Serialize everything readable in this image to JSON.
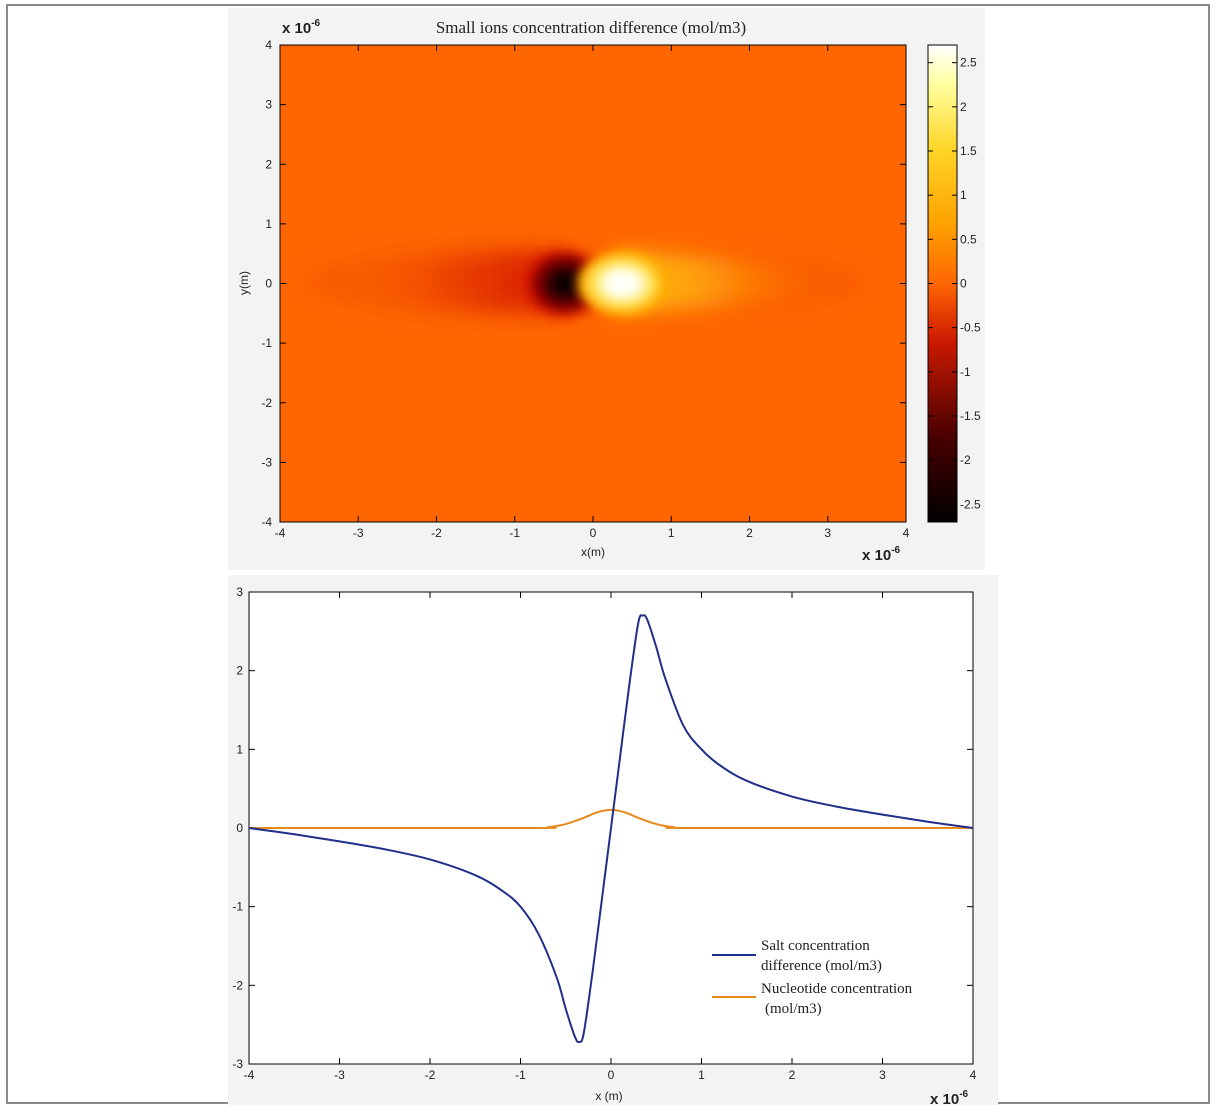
{
  "heatmap": {
    "title": "Small ions concentration difference (mol/m3)",
    "xlabel": "x(m)",
    "ylabel": "y(m)",
    "x_exponent_base": "x 10",
    "x_exponent_power": "-6",
    "y_exponent_base": "x 10",
    "y_exponent_power": "-6"
  },
  "lineplot": {
    "xlabel": "x (m)",
    "x_exponent_base": "x 10",
    "x_exponent_power": "-6"
  },
  "colors": {
    "background_orange": "#ff6600",
    "salt_line": "#1f2f8a",
    "nucleotide_line": "#e8891c",
    "axes": "#000000"
  },
  "chart_data": [
    {
      "type": "heatmap",
      "title": "Small ions concentration difference (mol/m3)",
      "xlabel": "x(m)",
      "ylabel": "y(m)",
      "xlim": [
        -4,
        4
      ],
      "ylim": [
        -4,
        4
      ],
      "x_ticks": [
        "-4",
        "-3",
        "-2",
        "-1",
        "0",
        "1",
        "2",
        "3",
        "4"
      ],
      "y_ticks": [
        "4",
        "3",
        "2",
        "1",
        "0",
        "-1",
        "-2",
        "-3",
        "-4"
      ],
      "colorbar": {
        "range": [
          -2.7,
          2.7
        ],
        "ticks": [
          "2.5",
          "2",
          "1.5",
          "1",
          "0.5",
          "0",
          "-0.5",
          "-1",
          "-1.5",
          "-2",
          "-2.5"
        ],
        "tick_values": [
          2.5,
          2,
          1.5,
          1,
          0.5,
          0,
          -0.5,
          -1,
          -1.5,
          -2,
          -2.5
        ]
      },
      "features": {
        "minimum": {
          "x": -0.35,
          "y": 0,
          "value": -2.7
        },
        "maximum": {
          "x": 0.35,
          "y": 0,
          "value": 2.7
        }
      }
    },
    {
      "type": "line",
      "xlabel": "x (m)",
      "xlim": [
        -4,
        4
      ],
      "ylim": [
        -3,
        3
      ],
      "x_ticks": [
        "-4",
        "-3",
        "-2",
        "-1",
        "0",
        "1",
        "2",
        "3",
        "4"
      ],
      "y_ticks": [
        "3",
        "2",
        "1",
        "0",
        "-1",
        "-2",
        "-3"
      ],
      "series": [
        {
          "name": "Salt concentration difference (mol/m3)",
          "legend_lines": [
            "Salt concentration",
            "difference (mol/m3)"
          ],
          "color": "#1f2f8a",
          "x": [
            -4.0,
            -3.5,
            -3.0,
            -2.5,
            -2.0,
            -1.5,
            -1.2,
            -1.0,
            -0.8,
            -0.6,
            -0.5,
            -0.4,
            -0.35,
            -0.3,
            -0.2,
            -0.1,
            0.0,
            0.1,
            0.2,
            0.3,
            0.35,
            0.4,
            0.5,
            0.6,
            0.8,
            1.0,
            1.2,
            1.5,
            2.0,
            2.5,
            3.0,
            3.5,
            4.0
          ],
          "y": [
            0.0,
            -0.08,
            -0.17,
            -0.27,
            -0.4,
            -0.6,
            -0.8,
            -1.0,
            -1.35,
            -1.9,
            -2.3,
            -2.65,
            -2.72,
            -2.6,
            -1.8,
            -0.9,
            0.0,
            0.9,
            1.8,
            2.6,
            2.7,
            2.65,
            2.3,
            1.9,
            1.3,
            1.0,
            0.8,
            0.6,
            0.4,
            0.27,
            0.17,
            0.08,
            0.0
          ]
        },
        {
          "name": "Nucleotide concentration (mol/m3)",
          "legend_lines": [
            "Nucleotide concentration",
            "(mol/m3)"
          ],
          "color": "#e8891c",
          "x": [
            -4.0,
            -0.9,
            -0.7,
            -0.5,
            -0.3,
            -0.15,
            0.0,
            0.15,
            0.3,
            0.5,
            0.7,
            0.9,
            4.0
          ],
          "y": [
            0.0,
            0.0,
            0.01,
            0.05,
            0.13,
            0.2,
            0.23,
            0.2,
            0.13,
            0.05,
            0.01,
            0.0,
            0.0
          ]
        }
      ],
      "legend": "bottom-right"
    }
  ]
}
